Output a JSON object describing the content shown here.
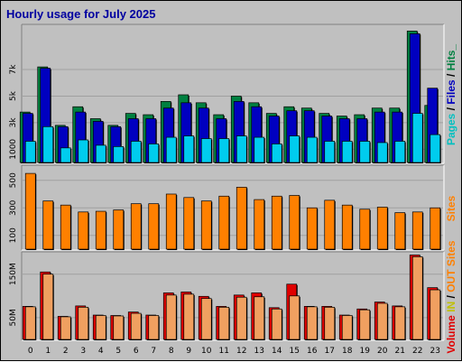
{
  "chart_data": {
    "type": "bar",
    "title": "Hourly usage for July 2025",
    "categories": [
      "0",
      "1",
      "2",
      "3",
      "4",
      "5",
      "6",
      "7",
      "8",
      "9",
      "10",
      "11",
      "12",
      "13",
      "14",
      "15",
      "16",
      "17",
      "18",
      "19",
      "20",
      "21",
      "22",
      "23"
    ],
    "panels": [
      {
        "id": "requests",
        "ylim": [
          0,
          10200
        ],
        "yticks": [
          {
            "label": "1000",
            "value": 1000
          },
          {
            "label": "3k",
            "value": 3000
          },
          {
            "label": "5k",
            "value": 5000
          },
          {
            "label": "7k",
            "value": 7000
          }
        ],
        "side_labels": [
          {
            "text": "Pages",
            "color": "#00c0c0"
          },
          {
            "text": " / ",
            "color": "#000000"
          },
          {
            "text": "Files",
            "color": "#0000c0"
          },
          {
            "text": " / ",
            "color": "#000000"
          },
          {
            "text": "Hits_",
            "color": "#008040"
          }
        ],
        "series": [
          {
            "name": "Hits",
            "color": "#008040",
            "offset": -6,
            "values": [
              3800,
              7200,
              2800,
              4200,
              3300,
              2800,
              3700,
              3600,
              4600,
              5100,
              4500,
              3600,
              5000,
              4500,
              3700,
              4200,
              4100,
              3700,
              3500,
              3600,
              4100,
              4100,
              9900,
              4300
            ]
          },
          {
            "name": "Files",
            "color": "#0000c0",
            "offset": -3,
            "values": [
              3700,
              7100,
              2700,
              3800,
              3100,
              2700,
              3300,
              3300,
              4100,
              4500,
              4100,
              3300,
              4600,
              4200,
              3500,
              3900,
              3900,
              3500,
              3300,
              3300,
              3800,
              3800,
              9700,
              5600
            ]
          },
          {
            "name": "Pages",
            "color": "#00ccee",
            "offset": 0,
            "values": [
              1600,
              2700,
              1100,
              1700,
              1300,
              1200,
              1600,
              1400,
              1900,
              2000,
              1800,
              1800,
              2000,
              1900,
              1400,
              2000,
              1900,
              1600,
              1600,
              1600,
              1500,
              1600,
              3700,
              2100
            ]
          }
        ]
      },
      {
        "id": "sites",
        "ylim": [
          0,
          590
        ],
        "yticks": [
          {
            "label": "100",
            "value": 100
          },
          {
            "label": "300",
            "value": 300
          },
          {
            "label": "500",
            "value": 500
          }
        ],
        "side_labels": [
          {
            "text": "Sites",
            "color": "#ff8000"
          }
        ],
        "series": [
          {
            "name": "Sites",
            "color": "#ff8000",
            "offset": 0,
            "values": [
              550,
              350,
              320,
              270,
              275,
              285,
              330,
              330,
              400,
              375,
              350,
              385,
              450,
              360,
              385,
              390,
              300,
              355,
              320,
              290,
              305,
              265,
              270,
              300
            ]
          }
        ]
      },
      {
        "id": "volume",
        "ylim": [
          0,
          195
        ],
        "yticks": [
          {
            "label": "50M",
            "value": 50
          },
          {
            "label": "150M",
            "value": 150
          }
        ],
        "side_labels": [
          {
            "text": "Volume",
            "color": "#e00000"
          },
          {
            "text": "  ",
            "color": "#000000"
          },
          {
            "text": "IN",
            "color": "#c0c000"
          },
          {
            "text": " / ",
            "color": "#000000"
          },
          {
            "text": "OUT",
            "color": "#ff8000"
          },
          {
            "text": "  ",
            "color": "#000000"
          },
          {
            "text": "Sites",
            "color": "#ff8000"
          }
        ],
        "series": [
          {
            "name": "Volume",
            "color": "#e00000",
            "offset": -3,
            "values": [
              76,
              155,
              53,
              77,
              56,
              55,
              63,
              56,
              107,
              109,
              99,
              76,
              102,
              107,
              73,
              127,
              76,
              76,
              56,
              70,
              86,
              77,
              194,
              119
            ]
          },
          {
            "name": "OUT",
            "color": "#f0a060",
            "offset": 0,
            "values": [
              75,
              150,
              52,
              74,
              55,
              54,
              60,
              55,
              102,
              104,
              94,
              74,
              97,
              98,
              70,
              100,
              75,
              74,
              55,
              68,
              83,
              75,
              190,
              114
            ]
          }
        ]
      }
    ]
  }
}
